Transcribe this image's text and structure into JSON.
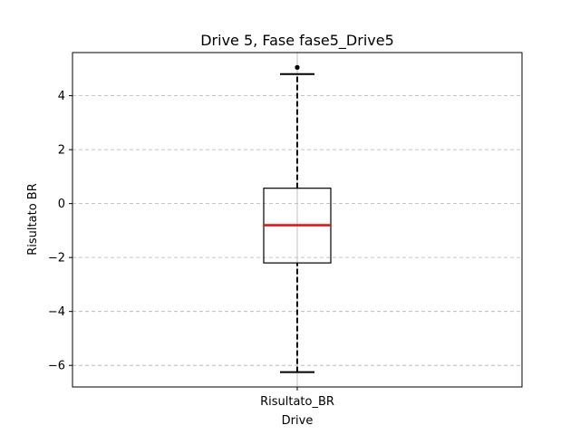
{
  "chart_data": {
    "type": "box",
    "title": "Drive 5, Fase fase5_Drive5",
    "xlabel": "Drive",
    "ylabel": "Risultato BR",
    "ylim": [
      -6.8,
      5.6
    ],
    "yticks": [
      -6,
      -4,
      -2,
      0,
      2,
      4
    ],
    "grid": {
      "y": true,
      "x": true,
      "style": "dashed"
    },
    "categories": [
      "Risultato_BR"
    ],
    "boxes": [
      {
        "label": "Risultato_BR",
        "whisker_low": -6.25,
        "q1": -2.2,
        "median": -0.8,
        "q3": 0.57,
        "whisker_high": 4.8,
        "outliers": [
          5.05
        ]
      }
    ],
    "colors": {
      "median": "#ff0000",
      "box": "#000000",
      "grid": "#b0b0b0"
    }
  }
}
